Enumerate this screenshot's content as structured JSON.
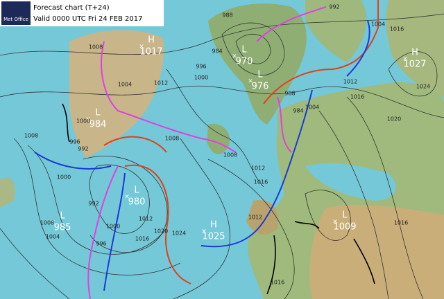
{
  "header": {
    "logo": "Met Office",
    "title": "Forecast chart (T+24)",
    "valid": "Valid 0000 UTC Fri 24 FEB 2017"
  },
  "centers": [
    {
      "type": "H",
      "pressure": "1017"
    },
    {
      "type": "L",
      "pressure": "970"
    },
    {
      "type": "L",
      "pressure": "976"
    },
    {
      "type": "H",
      "pressure": "1027"
    },
    {
      "type": "L",
      "pressure": "984"
    },
    {
      "type": "L",
      "pressure": "980"
    },
    {
      "type": "L",
      "pressure": "985"
    },
    {
      "type": "H",
      "pressure": "1025"
    },
    {
      "type": "L",
      "pressure": "1009"
    }
  ],
  "isobar_labels": [
    "988",
    "992",
    "1004",
    "1016",
    "984",
    "996",
    "1000",
    "1008",
    "1004",
    "1012",
    "1008",
    "1000",
    "996",
    "992",
    "1008",
    "1012",
    "1016",
    "1000",
    "992",
    "1008",
    "1004",
    "1000",
    "996",
    "1016",
    "1012",
    "1020",
    "1024",
    "1016",
    "1012",
    "1016",
    "1020",
    "1024",
    "1008",
    "1012",
    "1016",
    "1004",
    "988",
    "984"
  ]
}
